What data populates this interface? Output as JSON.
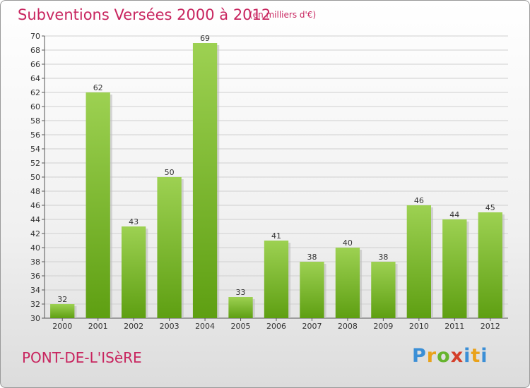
{
  "header": {
    "title": "Subventions Versées 2000 à 2012",
    "subtitle": "(en milliers d'€)"
  },
  "footer": {
    "town": "PONT-DE-L'ISèRE",
    "logo": "Proxiti"
  },
  "colors": {
    "accent": "#c8255f",
    "bar_top": "#9dd152",
    "bar_bottom": "#5e9f12"
  },
  "chart_data": {
    "type": "bar",
    "categories": [
      "2000",
      "2001",
      "2002",
      "2003",
      "2004",
      "2005",
      "2006",
      "2007",
      "2008",
      "2009",
      "2010",
      "2011",
      "2012"
    ],
    "values": [
      32,
      62,
      43,
      50,
      69,
      33,
      41,
      38,
      40,
      38,
      46,
      44,
      45
    ],
    "ylim": [
      30,
      70
    ],
    "yticks": [
      30,
      32,
      34,
      36,
      38,
      40,
      42,
      44,
      46,
      48,
      50,
      52,
      54,
      56,
      58,
      60,
      62,
      64,
      66,
      68,
      70
    ],
    "grid": true,
    "legend": "none"
  }
}
